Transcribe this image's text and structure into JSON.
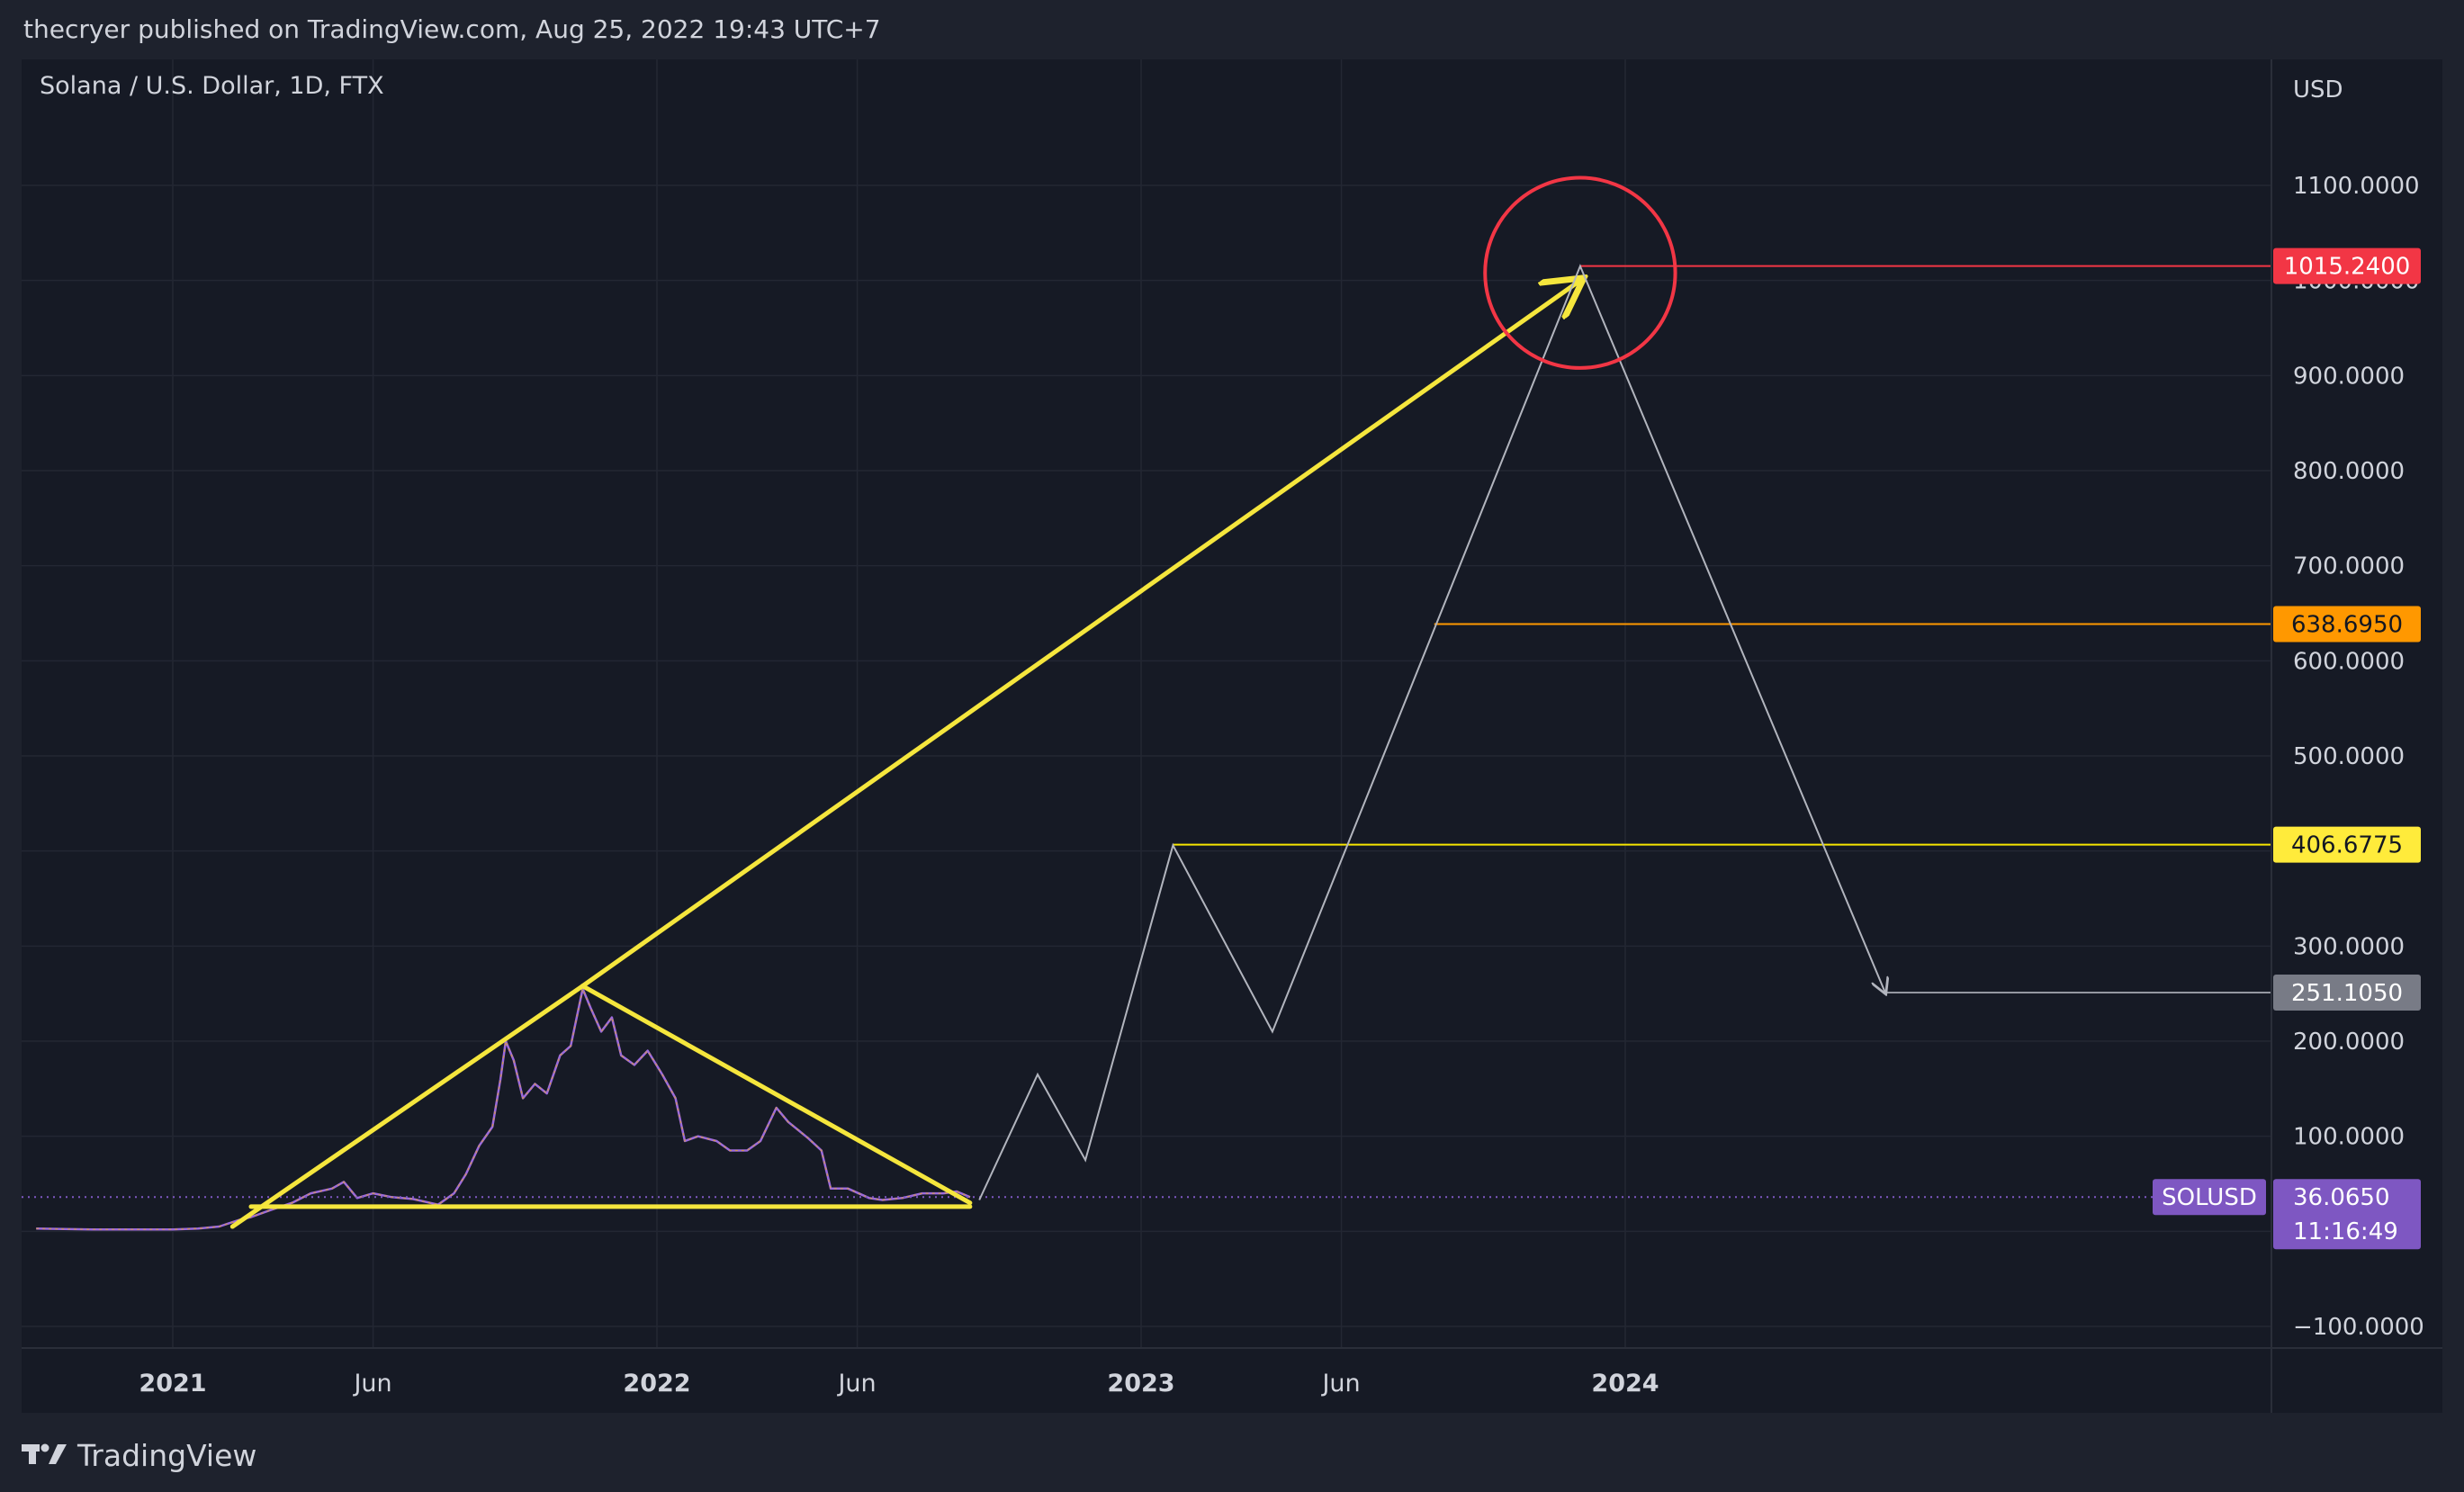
{
  "page": {
    "header": "thecryer published on TradingView.com, Aug 25, 2022 19:43 UTC+7",
    "brand": "TradingView",
    "logo_icon": "tradingview-logo-icon"
  },
  "chart_data": {
    "type": "line",
    "title": "Solana / U.S. Dollar, 1D, FTX",
    "ylabel": "USD",
    "ylim": [
      -100,
      1200
    ],
    "xlim": [
      "2020-09-20",
      "2024-12-20"
    ],
    "grid": true,
    "y_ticks": [
      {
        "value": 1100,
        "label": "1100.0000"
      },
      {
        "value": 1000,
        "label": "1000.0000"
      },
      {
        "value": 900,
        "label": "900.0000"
      },
      {
        "value": 800,
        "label": "800.0000"
      },
      {
        "value": 700,
        "label": "700.0000"
      },
      {
        "value": 600,
        "label": "600.0000"
      },
      {
        "value": 500,
        "label": "500.0000"
      },
      {
        "value": 300,
        "label": "300.0000"
      },
      {
        "value": 200,
        "label": "200.0000"
      },
      {
        "value": 100,
        "label": "100.0000"
      },
      {
        "value": -100,
        "label": "−100.0000"
      }
    ],
    "x_ticks": [
      {
        "date": "2021-01-01",
        "label": "2021",
        "bold": true
      },
      {
        "date": "2021-06-01",
        "label": "Jun",
        "bold": false
      },
      {
        "date": "2022-01-01",
        "label": "2022",
        "bold": true
      },
      {
        "date": "2022-06-01",
        "label": "Jun",
        "bold": false
      },
      {
        "date": "2023-01-01",
        "label": "2023",
        "bold": true
      },
      {
        "date": "2023-06-01",
        "label": "Jun",
        "bold": false
      },
      {
        "date": "2024-01-01",
        "label": "2024",
        "bold": true
      }
    ],
    "series": [
      {
        "color": "#9c6ade",
        "points": [
          [
            "2020-09-20",
            3
          ],
          [
            "2020-11-01",
            2
          ],
          [
            "2020-12-01",
            2
          ],
          [
            "2021-01-01",
            2
          ],
          [
            "2021-01-20",
            3
          ],
          [
            "2021-02-05",
            5
          ],
          [
            "2021-02-20",
            12
          ],
          [
            "2021-03-01",
            15
          ],
          [
            "2021-03-15",
            22
          ],
          [
            "2021-04-01",
            30
          ],
          [
            "2021-04-15",
            40
          ],
          [
            "2021-05-01",
            45
          ],
          [
            "2021-05-10",
            52
          ],
          [
            "2021-05-20",
            35
          ],
          [
            "2021-06-01",
            40
          ],
          [
            "2021-06-15",
            36
          ],
          [
            "2021-07-01",
            34
          ],
          [
            "2021-07-20",
            28
          ],
          [
            "2021-08-01",
            40
          ],
          [
            "2021-08-10",
            60
          ],
          [
            "2021-08-20",
            90
          ],
          [
            "2021-08-30",
            110
          ],
          [
            "2021-09-05",
            160
          ],
          [
            "2021-09-09",
            200
          ],
          [
            "2021-09-15",
            180
          ],
          [
            "2021-09-22",
            140
          ],
          [
            "2021-10-01",
            155
          ],
          [
            "2021-10-10",
            145
          ],
          [
            "2021-10-20",
            185
          ],
          [
            "2021-10-28",
            195
          ],
          [
            "2021-11-06",
            255
          ],
          [
            "2021-11-12",
            235
          ],
          [
            "2021-11-20",
            210
          ],
          [
            "2021-11-28",
            225
          ],
          [
            "2021-12-05",
            185
          ],
          [
            "2021-12-15",
            175
          ],
          [
            "2021-12-25",
            190
          ],
          [
            "2022-01-05",
            165
          ],
          [
            "2022-01-15",
            140
          ],
          [
            "2022-01-22",
            95
          ],
          [
            "2022-02-01",
            100
          ],
          [
            "2022-02-15",
            95
          ],
          [
            "2022-02-25",
            85
          ],
          [
            "2022-03-10",
            85
          ],
          [
            "2022-03-20",
            95
          ],
          [
            "2022-04-01",
            130
          ],
          [
            "2022-04-10",
            115
          ],
          [
            "2022-04-25",
            98
          ],
          [
            "2022-05-05",
            85
          ],
          [
            "2022-05-12",
            45
          ],
          [
            "2022-05-25",
            45
          ],
          [
            "2022-06-10",
            35
          ],
          [
            "2022-06-20",
            33
          ],
          [
            "2022-07-05",
            35
          ],
          [
            "2022-07-20",
            40
          ],
          [
            "2022-08-05",
            40
          ],
          [
            "2022-08-15",
            42
          ],
          [
            "2022-08-25",
            36
          ]
        ]
      }
    ],
    "drawings": {
      "yellow_lines": [
        {
          "from": [
            "2021-02-15",
            5
          ],
          "to": [
            "2021-11-06",
            258
          ]
        },
        {
          "from": [
            "2021-11-06",
            258
          ],
          "to": [
            "2022-08-25",
            30
          ]
        },
        {
          "from": [
            "2021-03-01",
            26
          ],
          "to": [
            "2022-08-25",
            26
          ]
        },
        {
          "from": [
            "2021-11-06",
            258
          ],
          "to": [
            "2023-11-28",
            1000
          ],
          "arrow": true
        }
      ],
      "projection": [
        [
          "2022-09-01",
          33
        ],
        [
          "2022-10-15",
          165
        ],
        [
          "2022-11-20",
          75
        ],
        [
          "2023-01-25",
          406
        ],
        [
          "2023-04-10",
          210
        ],
        [
          "2023-11-28",
          1015
        ],
        [
          "2024-07-15",
          251
        ]
      ],
      "circle": {
        "center": [
          "2023-11-28",
          1008
        ],
        "radius_value": 100
      },
      "hlines": [
        {
          "start": "2023-11-28",
          "value": 1015.24,
          "color": "#f23645",
          "label": "1015.2400",
          "label_bg": "#f23645",
          "label_fg": "#ffffff"
        },
        {
          "start": "2023-08-10",
          "value": 638.695,
          "color": "#ff9800",
          "label": "638.6950",
          "label_bg": "#ff9800",
          "label_fg": "#131722"
        },
        {
          "start": "2023-01-25",
          "value": 406.6775,
          "color": "#f7e600",
          "label": "406.6775",
          "label_bg": "#ffeb3b",
          "label_fg": "#131722"
        },
        {
          "start": "2024-07-15",
          "value": 251.105,
          "color": "#9598a1",
          "label": "251.1050",
          "label_bg": "#787b86",
          "label_fg": "#ffffff"
        }
      ]
    },
    "last_price": {
      "symbol": "SOLUSD",
      "value": 36.065,
      "label": "36.0650",
      "countdown": "11:16:49",
      "color": "#7e57c2"
    }
  }
}
